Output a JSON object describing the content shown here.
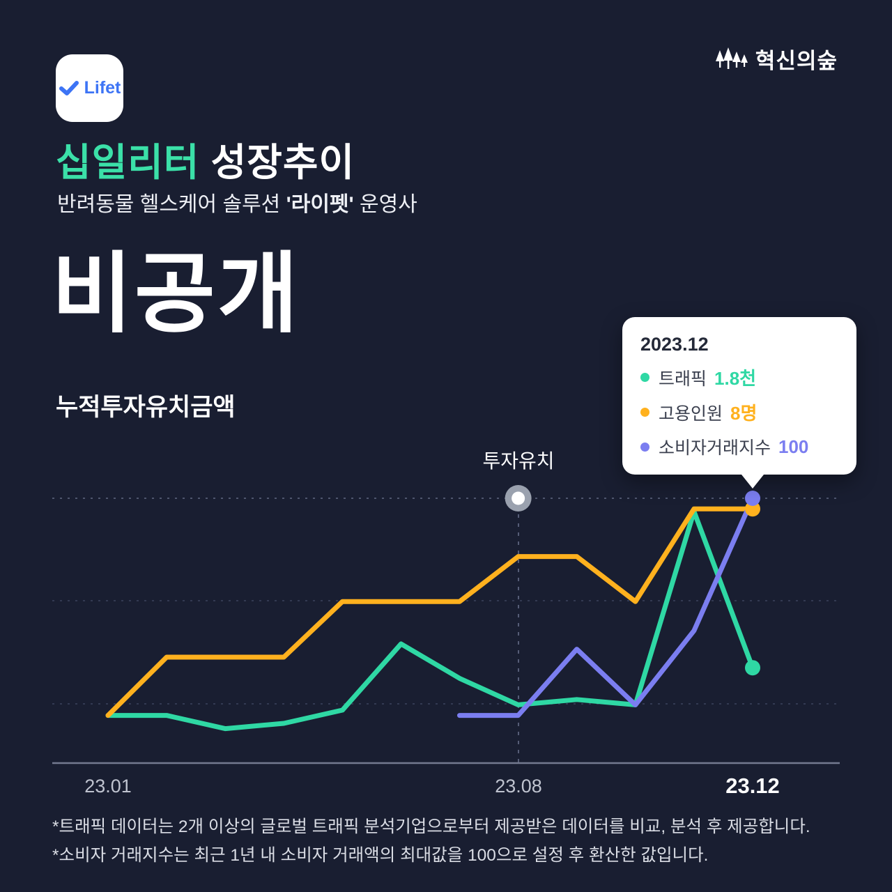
{
  "page": {
    "background": "#191e31"
  },
  "header": {
    "logo_text": "Lifet",
    "logo_accent_color": "#3d74f5",
    "brand_text": "혁신의숲"
  },
  "title": {
    "highlight": "십일리터",
    "rest": " 성장추이"
  },
  "subtitle": {
    "pre": "반려동물 헬스케어 솔루션 ",
    "bold": "'라이펫'",
    "post": " 운영사"
  },
  "metric": {
    "value": "비공개",
    "label": "누적투자유치금액"
  },
  "tooltip": {
    "title": "2023.12",
    "rows": [
      {
        "label": "트래픽",
        "value": "1.8천",
        "color": "#2fd8a4"
      },
      {
        "label": "고용인원",
        "value": "8명",
        "color": "#ffb11e"
      },
      {
        "label": "소비자거래지수",
        "value": "100",
        "color": "#7b7ef0"
      }
    ]
  },
  "chart_data": {
    "type": "line",
    "title": "십일리터 성장추이",
    "x": [
      "23.01",
      "23.02",
      "23.03",
      "23.04",
      "23.05",
      "23.06",
      "23.07",
      "23.08",
      "23.09",
      "23.10",
      "23.11",
      "23.12"
    ],
    "x_ticks_shown": [
      "23.01",
      "23.08",
      "23.12"
    ],
    "ylim": [
      0,
      100
    ],
    "grid": true,
    "note": "values normalized to chart height; 100 = top gridline; per-series latest absolute values shown in tooltip",
    "series": [
      {
        "name": "트래픽",
        "color": "#2fd8a4",
        "latest_label": "1.8천",
        "values": [
          18,
          18,
          13,
          15,
          20,
          45,
          32,
          22,
          24,
          22,
          95,
          36
        ]
      },
      {
        "name": "고용인원",
        "color": "#ffb11e",
        "latest_label": "8명",
        "values": [
          18,
          40,
          40,
          40,
          61,
          61,
          61,
          78,
          78,
          61,
          96,
          96
        ]
      },
      {
        "name": "소비자거래지수",
        "color": "#7b7ef0",
        "latest_label": "100",
        "values": [
          null,
          null,
          null,
          null,
          null,
          null,
          18,
          18,
          43,
          22,
          50,
          100
        ]
      }
    ],
    "annotation": {
      "label": "투자유치",
      "x": "23.08",
      "y": 100
    }
  },
  "footnotes": [
    "*트래픽 데이터는 2개 이상의 글로벌 트래픽 분석기업으로부터 제공받은 데이터를 비교, 분석 후 제공합니다.",
    "*소비자 거래지수는 최근 1년 내 소비자 거래액의 최대값을 100으로 설정 후 환산한 값입니다."
  ]
}
